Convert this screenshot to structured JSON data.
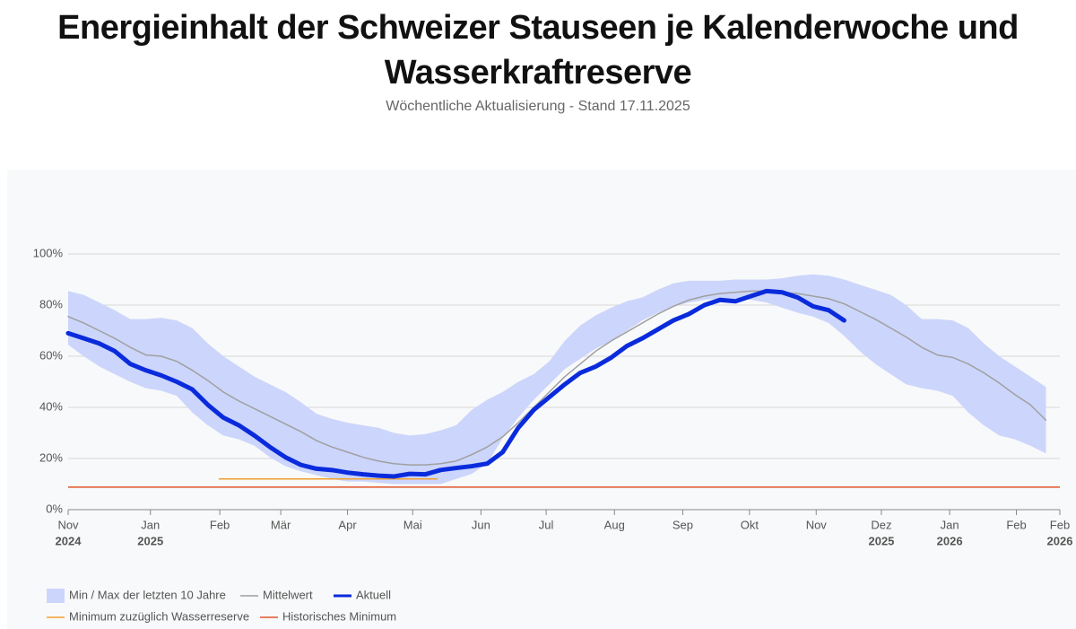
{
  "chart_data": {
    "type": "line",
    "title": "Energieinhalt der Schweizer Stauseen je Kalenderwoche und Wasserkraftreserve",
    "subtitle": "Wöchentliche Aktualisierung - Stand 17.11.2025",
    "x": [
      0,
      1,
      2,
      3,
      4,
      5,
      6,
      7,
      8,
      9,
      10,
      11,
      12,
      13,
      14,
      15,
      16,
      17,
      18,
      19,
      20,
      21,
      22,
      23,
      24,
      25,
      26,
      27,
      28,
      29,
      30,
      31,
      32,
      33,
      34,
      35,
      36,
      37,
      38,
      39,
      40,
      41,
      42,
      43,
      44,
      45,
      46,
      47,
      48,
      49,
      50,
      51,
      52,
      53,
      54,
      55,
      56,
      57,
      58,
      59,
      60,
      61,
      62,
      63
    ],
    "xlim": [
      0,
      63.9
    ],
    "xticks": [
      {
        "value": 0,
        "label": "Nov",
        "year": "2024"
      },
      {
        "value": 5.3,
        "label": "Jan",
        "year": "2025"
      },
      {
        "value": 9.77,
        "label": "Feb"
      },
      {
        "value": 13.7,
        "label": "Mär"
      },
      {
        "value": 18.0,
        "label": "Apr"
      },
      {
        "value": 22.2,
        "label": "Mai"
      },
      {
        "value": 26.6,
        "label": "Jun"
      },
      {
        "value": 30.8,
        "label": "Jul"
      },
      {
        "value": 35.2,
        "label": "Aug"
      },
      {
        "value": 39.6,
        "label": "Sep"
      },
      {
        "value": 43.9,
        "label": "Okt"
      },
      {
        "value": 48.2,
        "label": "Nov"
      },
      {
        "value": 52.4,
        "label": "Dez",
        "year": "2025"
      },
      {
        "value": 56.8,
        "label": "Jan",
        "year": "2026"
      },
      {
        "value": 61.1,
        "label": "Feb"
      },
      {
        "value": 63.9,
        "label": "Feb",
        "year": "2026"
      }
    ],
    "ylim": [
      0,
      100
    ],
    "yticks": [
      {
        "value": 0,
        "label": "0%"
      },
      {
        "value": 20,
        "label": "20%"
      },
      {
        "value": 40,
        "label": "40%"
      },
      {
        "value": 60,
        "label": "60%"
      },
      {
        "value": 80,
        "label": "80%"
      },
      {
        "value": 100,
        "label": "100%"
      }
    ],
    "grid": true,
    "band": {
      "name": "Min / Max der letzten 10 Jahre",
      "color": "#ccd5fb",
      "max": [
        85.5,
        84,
        81,
        78,
        74.5,
        74.5,
        75,
        74,
        71,
        65,
        60,
        56,
        52,
        49,
        46,
        42,
        37.5,
        35.5,
        34,
        33,
        32,
        30,
        29,
        29.5,
        31,
        33,
        39,
        43,
        46,
        50,
        53,
        58,
        66,
        72,
        76,
        79,
        81.5,
        83,
        86,
        88.5,
        89.5,
        89.5,
        89.5,
        90,
        90,
        90,
        90.5,
        91.5,
        92,
        91.5,
        90,
        88,
        86,
        84,
        80,
        74.5,
        74.5,
        74,
        71,
        65,
        60,
        56,
        52,
        48
      ],
      "min": [
        64.5,
        60,
        56,
        53,
        50,
        47.5,
        46.5,
        44.5,
        38,
        33,
        29,
        27.5,
        25,
        20.5,
        17,
        15,
        13.5,
        12,
        11,
        11,
        10.5,
        10,
        10,
        10,
        10,
        12,
        14,
        18,
        28,
        36,
        43,
        49,
        55,
        59,
        63,
        66,
        70,
        74,
        77,
        79.5,
        81,
        82,
        82.5,
        82.5,
        82,
        81,
        79,
        77,
        75.5,
        73,
        68,
        62,
        57,
        53,
        49,
        47.5,
        46.5,
        44.5,
        38,
        33,
        29,
        27.5,
        25,
        22
      ]
    },
    "series": [
      {
        "name": "Mittelwert",
        "color": "#a0a0a0",
        "values": [
          75.5,
          73,
          70,
          67,
          63.5,
          60.5,
          60,
          58,
          54.5,
          50.5,
          46,
          42.5,
          39.5,
          36.5,
          33.5,
          30.5,
          27,
          24.5,
          22.5,
          20.5,
          19,
          18,
          17.5,
          17.5,
          18,
          19,
          21.5,
          24.5,
          28.5,
          34,
          40,
          46,
          52,
          57,
          62,
          66,
          69.5,
          73,
          76.5,
          79.5,
          82,
          83.5,
          84.5,
          85,
          85.5,
          85.5,
          85,
          84.5,
          83.5,
          82.5,
          80.5,
          77.5,
          74.5,
          71,
          67.5,
          63.5,
          60.5,
          59.5,
          57,
          53.5,
          49.5,
          45,
          41,
          35
        ]
      },
      {
        "name": "Aktuell",
        "color": "#0a2bdc",
        "values": [
          69,
          67,
          65,
          62,
          57,
          54.5,
          52.5,
          50,
          47,
          41,
          36,
          33,
          29,
          24.5,
          20.5,
          17.5,
          16,
          15.5,
          14.5,
          13.8,
          13.3,
          13,
          14,
          13.8,
          15.5,
          16.3,
          17,
          18,
          22.5,
          32,
          39,
          44,
          49,
          53.5,
          56,
          59.5,
          64,
          67,
          70.5,
          74,
          76.5,
          80,
          82,
          81.5,
          83.5,
          85.5,
          85,
          83,
          79.5,
          78,
          74,
          null,
          null,
          null,
          null,
          null,
          null,
          null,
          null,
          null,
          null,
          null,
          null,
          null
        ]
      }
    ],
    "reference_lines": [
      {
        "name": "Minimum zuzüglich Wasserreserve",
        "color": "#f0a030",
        "value": 12,
        "xrange": [
          9.7,
          23.8
        ]
      },
      {
        "name": "Historisches Minimum",
        "color": "#e0552a",
        "value": 8.8
      }
    ]
  }
}
